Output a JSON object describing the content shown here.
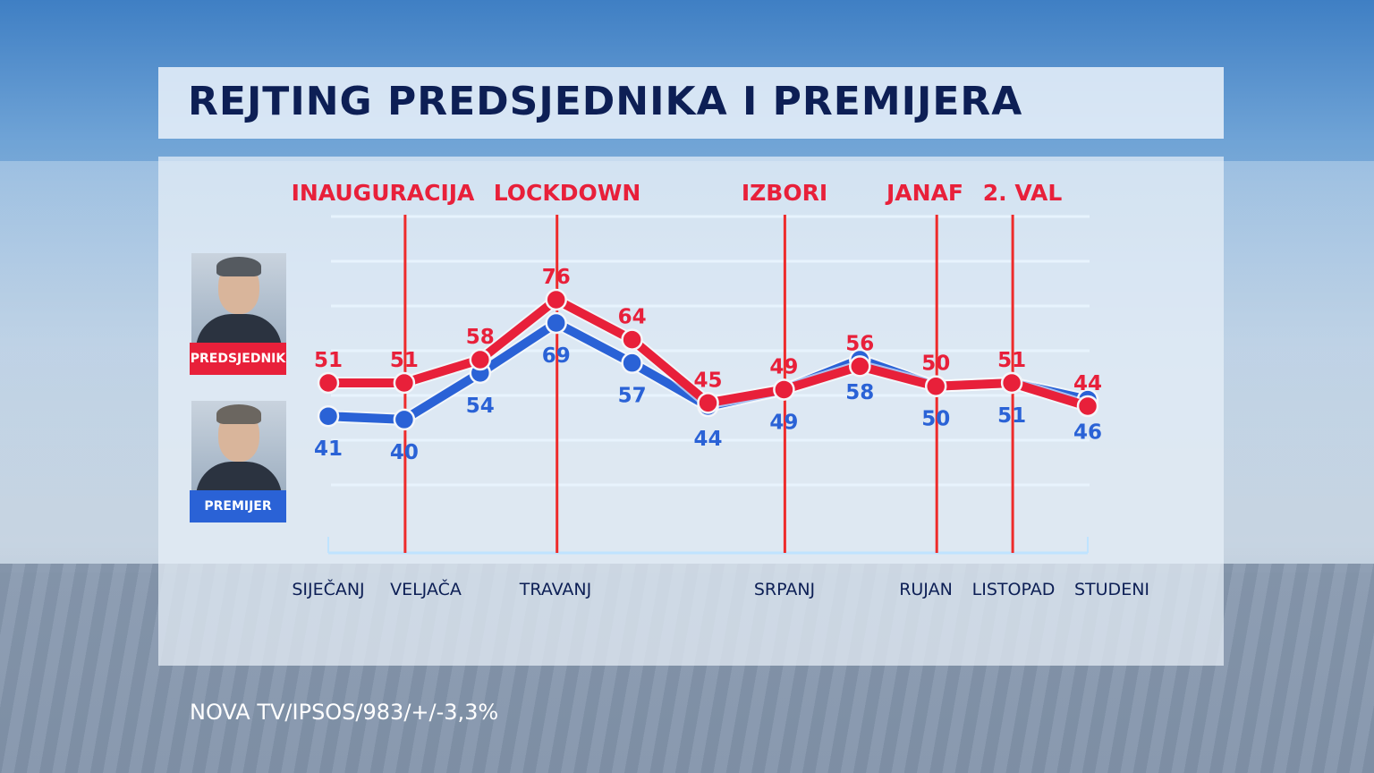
{
  "title": "REJTING PREDSJEDNIKA I PREMIJERA",
  "footer": "NOVA TV/IPSOS/983/+/-3,3%",
  "legend": {
    "red_label": "PREDSJEDNIK",
    "blue_label": "PREMIJER"
  },
  "colors": {
    "red": "#e8203a",
    "blue": "#2a62d6",
    "title": "#0d1f55",
    "event_line": "#ee2b2b"
  },
  "chart_data": {
    "type": "line",
    "title": "REJTING PREDSJEDNIKA I PREMIJERA",
    "categories": [
      "SIJEČANJ",
      "VELJAČA",
      "",
      "TRAVANJ",
      "",
      "",
      "SRPANJ",
      "",
      "RUJAN",
      "LISTOPAD",
      "STUDENI"
    ],
    "series": [
      {
        "name": "PREDSJEDNIK",
        "color": "#e8203a",
        "values": [
          51,
          51,
          58,
          76,
          64,
          45,
          49,
          56,
          50,
          51,
          44
        ]
      },
      {
        "name": "PREMIJER",
        "color": "#2a62d6",
        "values": [
          41,
          40,
          54,
          69,
          57,
          44,
          49,
          58,
          50,
          51,
          46
        ]
      }
    ],
    "events": [
      {
        "label": "INAUGURACIJA",
        "index": 1
      },
      {
        "label": "LOCKDOWN",
        "index": 3
      },
      {
        "label": "IZBORI",
        "index": 6
      },
      {
        "label": "JANAF",
        "index": 8
      },
      {
        "label": "2. VAL",
        "index": 9
      }
    ],
    "grid": true
  }
}
